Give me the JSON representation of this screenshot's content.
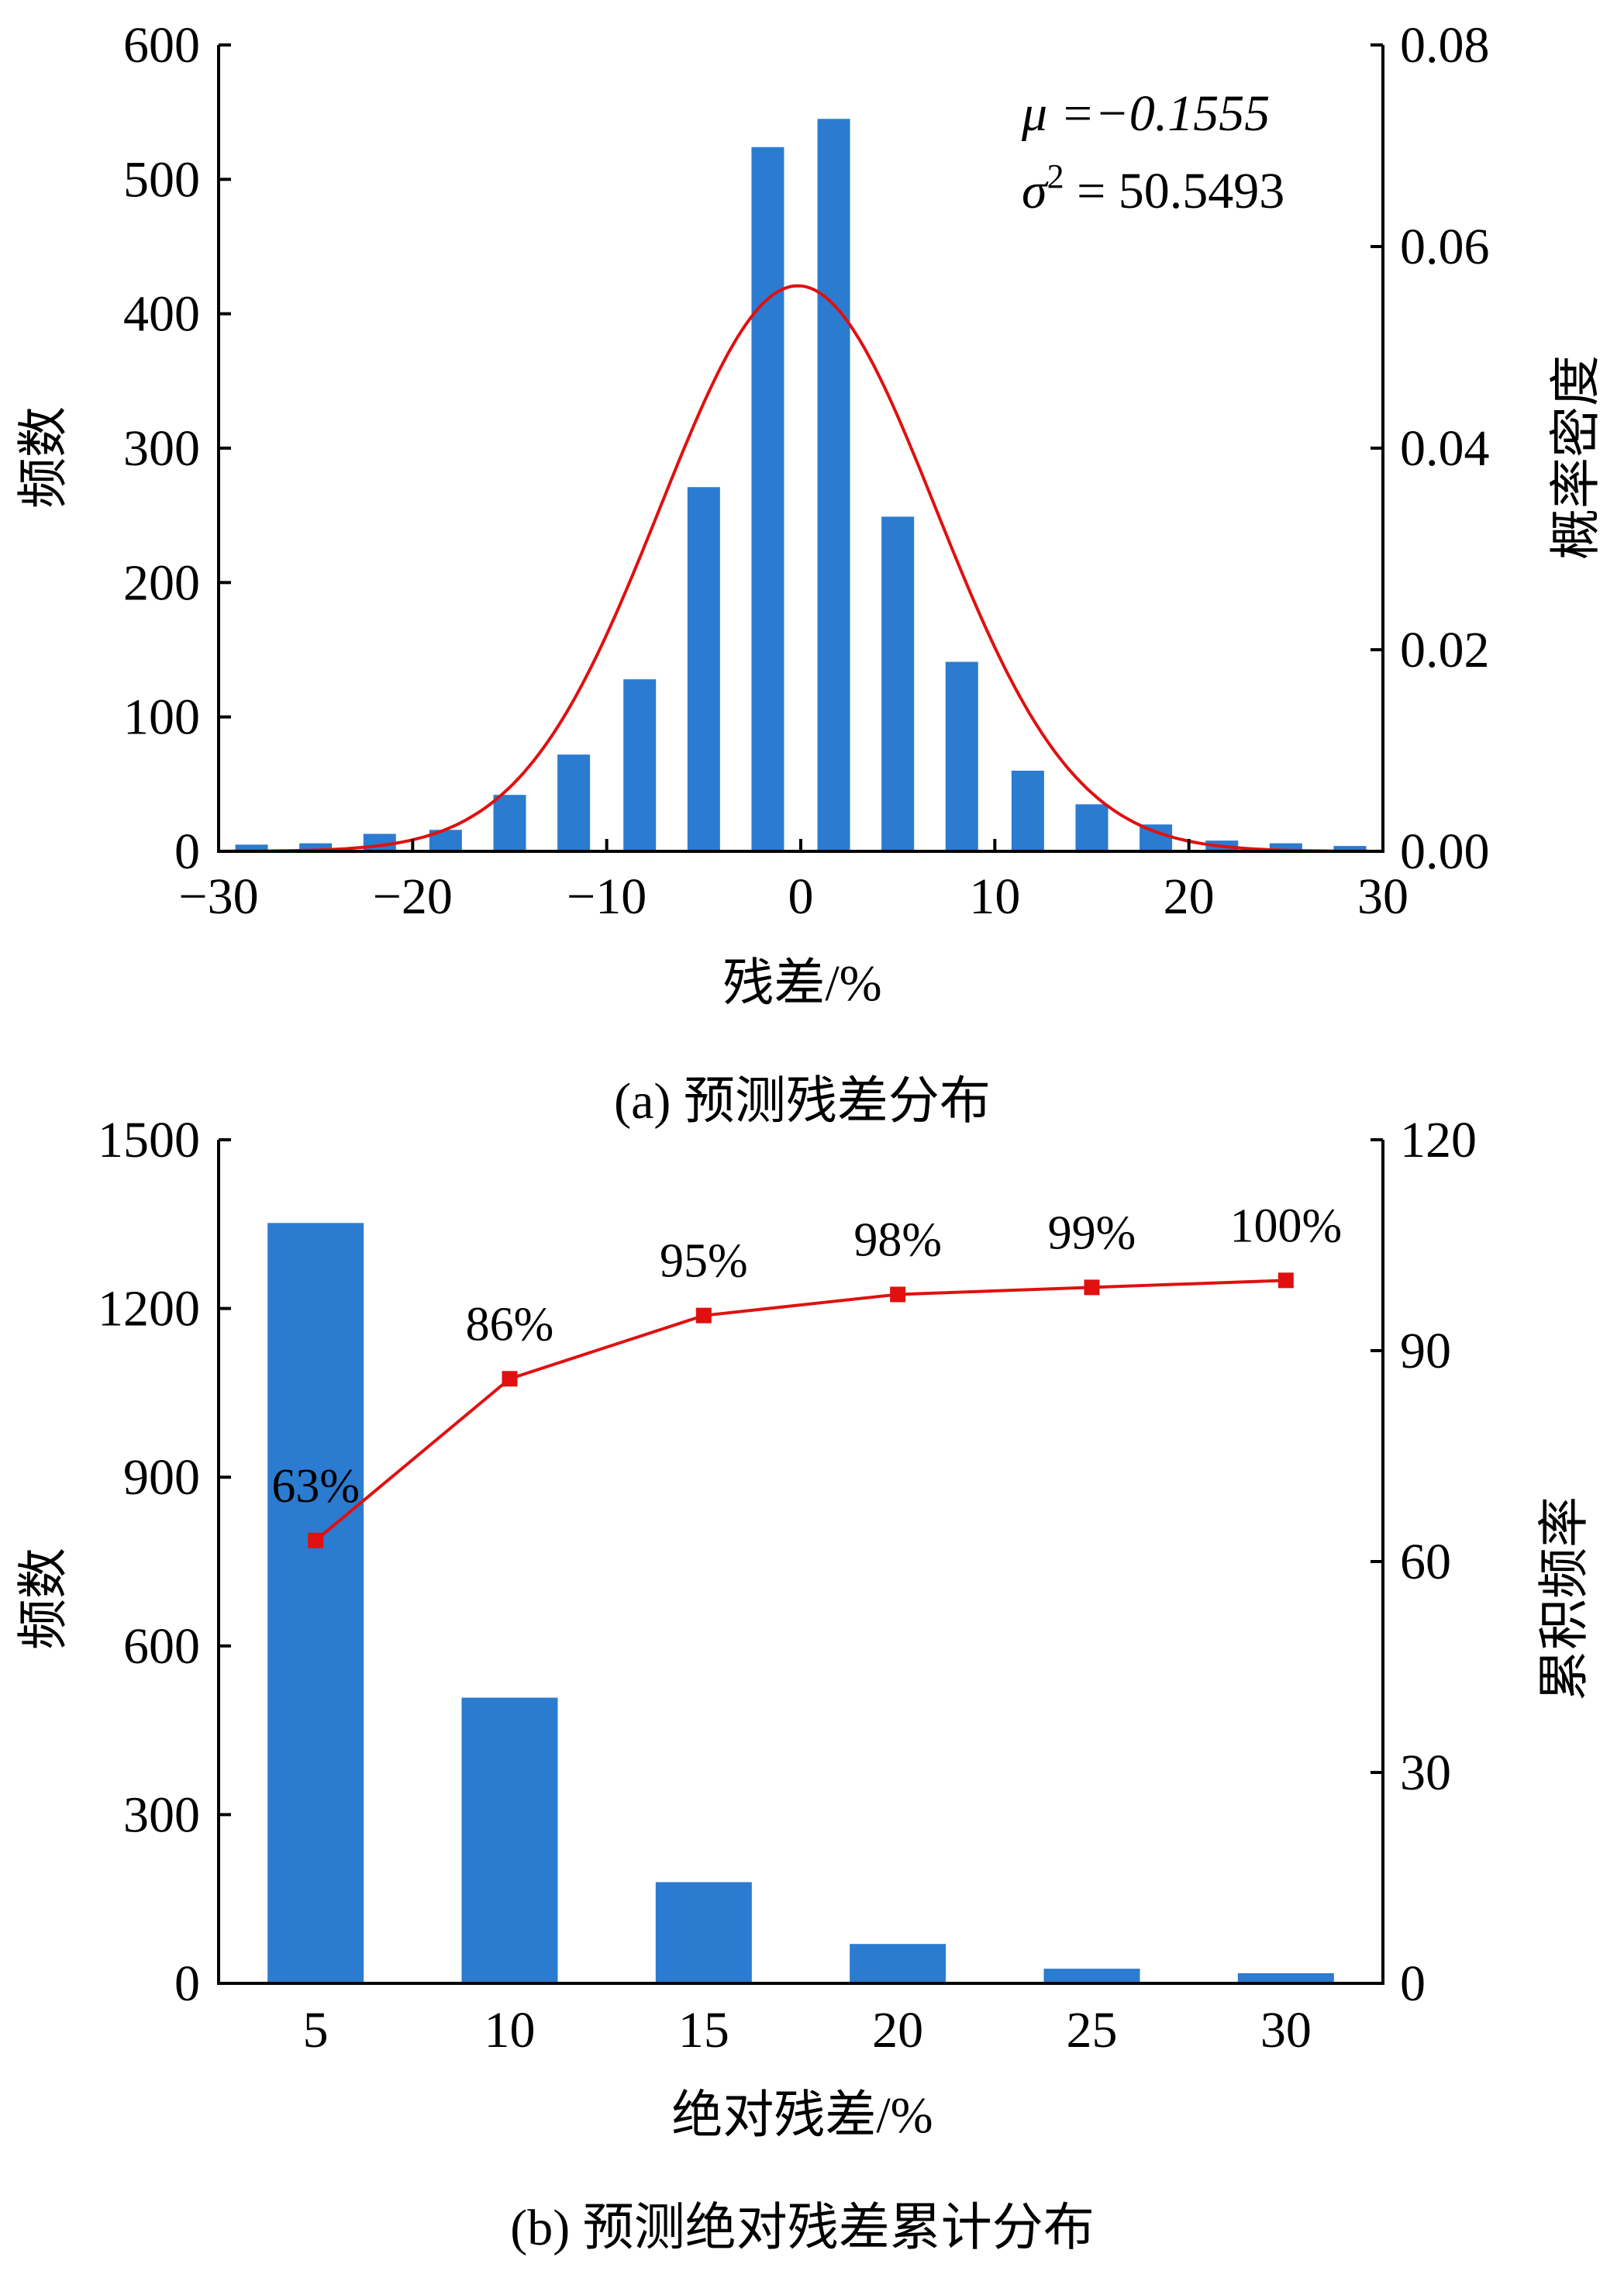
{
  "colors": {
    "bar": "#2B7BD0",
    "curve": "#E01010",
    "marker": "#E01010",
    "axis": "#000000"
  },
  "chart_data": [
    {
      "type": "bar",
      "caption": "(a) 预测残差分布",
      "xlabel": "残差/%",
      "ylabel": "频数",
      "y2label": "概率密度",
      "xlim": [
        -30,
        30
      ],
      "ylim": [
        0,
        600
      ],
      "y2lim": [
        0,
        0.08
      ],
      "xticks": [
        "−30",
        "−20",
        "−10",
        "0",
        "10",
        "20",
        "30"
      ],
      "yticks": [
        "0",
        "100",
        "200",
        "300",
        "400",
        "500",
        "600"
      ],
      "y2ticks": [
        "0.00",
        "0.02",
        "0.04",
        "0.06",
        "0.08"
      ],
      "x": [
        -28.3,
        -25,
        -21.7,
        -18.3,
        -15,
        -11.7,
        -8.3,
        -5,
        -1.7,
        1.7,
        5,
        8.3,
        11.7,
        15,
        18.3,
        21.7,
        25,
        28.3
      ],
      "values": [
        5,
        6,
        13,
        16,
        42,
        72,
        128,
        271,
        524,
        545,
        249,
        141,
        60,
        35,
        20,
        8,
        6,
        4
      ],
      "series": [
        {
          "name": "频数",
          "type": "bar",
          "axis": "left"
        },
        {
          "name": "概率密度",
          "type": "line",
          "axis": "right",
          "mu": -0.1555,
          "sigma2": 50.5493
        }
      ],
      "annotations": {
        "mu": "μ =−0.1555",
        "sigma_sym": "σ",
        "sigma_sup": "2",
        "sigma_rest": " = 50.5493"
      }
    },
    {
      "type": "bar",
      "caption": "(b) 预测绝对残差累计分布",
      "xlabel": "绝对残差/%",
      "ylabel": "频数",
      "y2label": "累积频率",
      "categories": [
        "5",
        "10",
        "15",
        "20",
        "25",
        "30"
      ],
      "ylim": [
        0,
        1500
      ],
      "y2lim": [
        0,
        120
      ],
      "yticks": [
        "0",
        "300",
        "600",
        "900",
        "1200",
        "1500"
      ],
      "y2ticks": [
        "0",
        "30",
        "60",
        "90",
        "120"
      ],
      "series": [
        {
          "name": "频数",
          "type": "bar",
          "axis": "left",
          "values": [
            1352,
            508,
            180,
            70,
            26,
            18
          ]
        },
        {
          "name": "累积频率",
          "type": "line",
          "axis": "right",
          "values": [
            63,
            86,
            95,
            98,
            99,
            100
          ],
          "labels": [
            "63%",
            "86%",
            "95%",
            "98%",
            "99%",
            "100%"
          ]
        }
      ]
    }
  ]
}
